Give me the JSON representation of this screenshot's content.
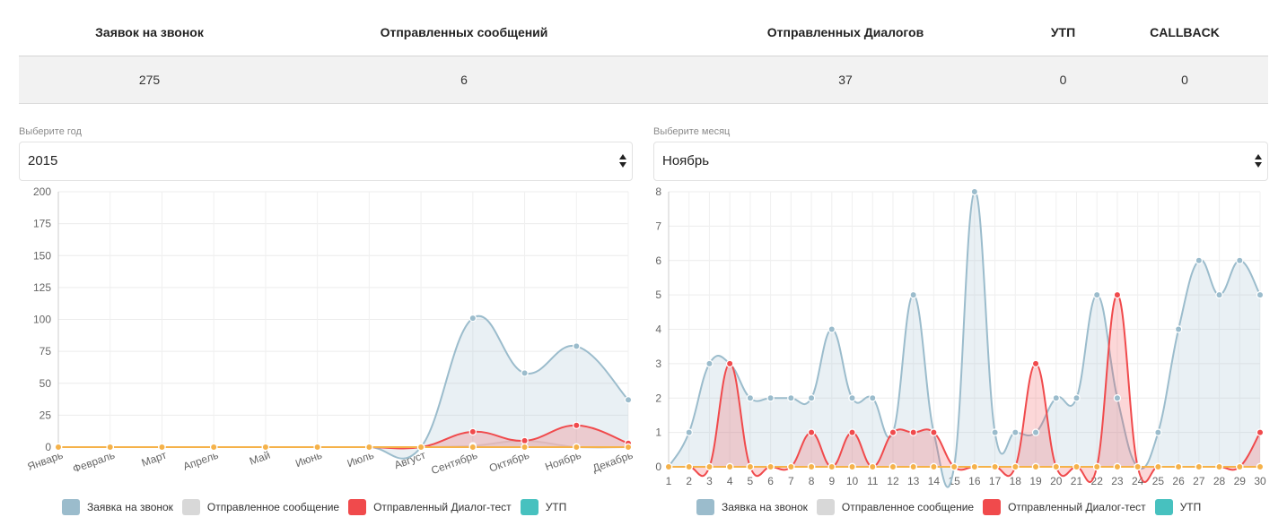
{
  "stats": {
    "headers": [
      "Заявок на звонок",
      "Отправленных сообщений",
      "Отправленных Диалогов",
      "УТП",
      "CALLBACK"
    ],
    "values": [
      "275",
      "6",
      "37",
      "0",
      "0"
    ]
  },
  "year_select": {
    "label": "Выберите год",
    "value": "2015"
  },
  "month_select": {
    "label": "Выберите месяц",
    "value": "Ноябрь"
  },
  "colors": {
    "calls": "#9bbccc",
    "messages": "#d8d8d8",
    "dialogs": "#f04a4c",
    "utp": "#47c1bf",
    "callback": "#f5b24a"
  },
  "legend": [
    "Заявка на звонок",
    "Отправленное сообщение",
    "Отправленный Диалог-тест",
    "УТП"
  ],
  "chart_data": [
    {
      "type": "area",
      "categories": [
        "Январь",
        "Февраль",
        "Март",
        "Апрель",
        "Май",
        "Июнь",
        "Июль",
        "Август",
        "Сентябрь",
        "Октябрь",
        "Ноябрь",
        "Декабрь"
      ],
      "ylim": [
        0,
        200
      ],
      "yticks": [
        0,
        25,
        50,
        75,
        100,
        125,
        150,
        175,
        200
      ],
      "series": [
        {
          "name": "Заявка на звонок",
          "values": [
            0,
            0,
            0,
            0,
            0,
            0,
            0,
            0,
            101,
            58,
            79,
            37
          ]
        },
        {
          "name": "Отправленное сообщение",
          "values": [
            0,
            0,
            0,
            0,
            0,
            0,
            0,
            0,
            1,
            5,
            0,
            0
          ]
        },
        {
          "name": "Отправленный Диалог-тест",
          "values": [
            0,
            0,
            0,
            0,
            0,
            0,
            0,
            0,
            12,
            5,
            17,
            3
          ]
        },
        {
          "name": "УТП",
          "values": [
            0,
            0,
            0,
            0,
            0,
            0,
            0,
            0,
            0,
            0,
            0,
            0
          ]
        },
        {
          "values": [
            0,
            0,
            0,
            0,
            0,
            0,
            0,
            0,
            0,
            0,
            0,
            0
          ]
        }
      ],
      "grid": true,
      "legend_position": "bottom"
    },
    {
      "type": "area",
      "categories": [
        "1",
        "2",
        "3",
        "4",
        "5",
        "6",
        "7",
        "8",
        "9",
        "10",
        "11",
        "12",
        "13",
        "14",
        "15",
        "16",
        "17",
        "18",
        "19",
        "20",
        "21",
        "22",
        "23",
        "24",
        "25",
        "26",
        "27",
        "28",
        "29",
        "30"
      ],
      "ylim": [
        0,
        8
      ],
      "yticks": [
        0,
        1,
        2,
        3,
        4,
        5,
        6,
        7,
        8
      ],
      "series": [
        {
          "name": "Заявка на звонок",
          "values": [
            0,
            1,
            3,
            3,
            2,
            2,
            2,
            2,
            4,
            2,
            2,
            1,
            5,
            1,
            0,
            8,
            1,
            1,
            1,
            2,
            2,
            5,
            2,
            0,
            1,
            4,
            6,
            5,
            6,
            5
          ]
        },
        {
          "name": "Отправленное сообщение",
          "values": [
            0,
            0,
            0,
            0,
            0,
            0,
            0,
            0,
            0,
            0,
            0,
            0,
            0,
            0,
            0,
            0,
            0,
            0,
            0,
            0,
            0,
            0,
            0,
            0,
            0,
            0,
            0,
            0,
            0,
            0
          ]
        },
        {
          "name": "Отправленный Диалог-тест",
          "values": [
            0,
            0,
            0,
            3,
            0,
            0,
            0,
            1,
            0,
            1,
            0,
            1,
            1,
            1,
            0,
            0,
            0,
            0,
            3,
            0,
            0,
            0,
            5,
            0,
            0,
            0,
            0,
            0,
            0,
            1
          ]
        },
        {
          "name": "УТП",
          "values": [
            0,
            0,
            0,
            0,
            0,
            0,
            0,
            0,
            0,
            0,
            0,
            0,
            0,
            0,
            0,
            0,
            0,
            0,
            0,
            0,
            0,
            0,
            0,
            0,
            0,
            0,
            0,
            0,
            0,
            0
          ]
        },
        {
          "values": [
            0,
            0,
            0,
            0,
            0,
            0,
            0,
            0,
            0,
            0,
            0,
            0,
            0,
            0,
            0,
            0,
            0,
            0,
            0,
            0,
            0,
            0,
            0,
            0,
            0,
            0,
            0,
            0,
            0,
            0
          ]
        }
      ],
      "grid": true,
      "legend_position": "bottom"
    }
  ]
}
